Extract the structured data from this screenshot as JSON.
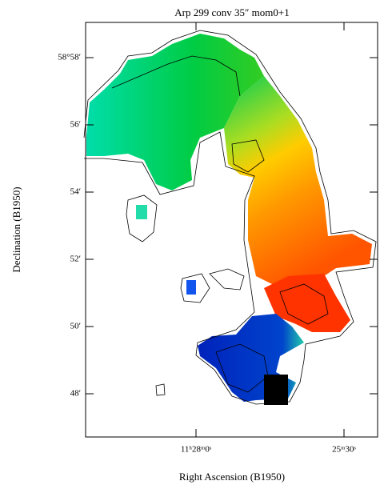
{
  "chart_data": {
    "type": "image",
    "title": "Arp 299 conv 35″ mom0+1",
    "x_label": "Right Ascension (B1950)",
    "y_label": "Declination (B1950)",
    "xlim": [
      11.49775,
      11.41554
    ],
    "ylim": [
      58.77857,
      58.98413
    ],
    "xticks": [
      {
        "value": 11.46667,
        "label": "11ʰ28ᵐ0ˢ"
      },
      {
        "value": 11.425,
        "label": "25ᵐ30ˢ"
      }
    ],
    "yticks": [
      {
        "value": 58.96667,
        "label": "58°58′"
      },
      {
        "value": 58.93333,
        "label": "56′"
      },
      {
        "value": 58.9,
        "label": "54′"
      },
      {
        "value": 58.86667,
        "label": "52′"
      },
      {
        "value": 58.83333,
        "label": "50′"
      },
      {
        "value": 58.8,
        "label": "48′"
      }
    ]
  }
}
